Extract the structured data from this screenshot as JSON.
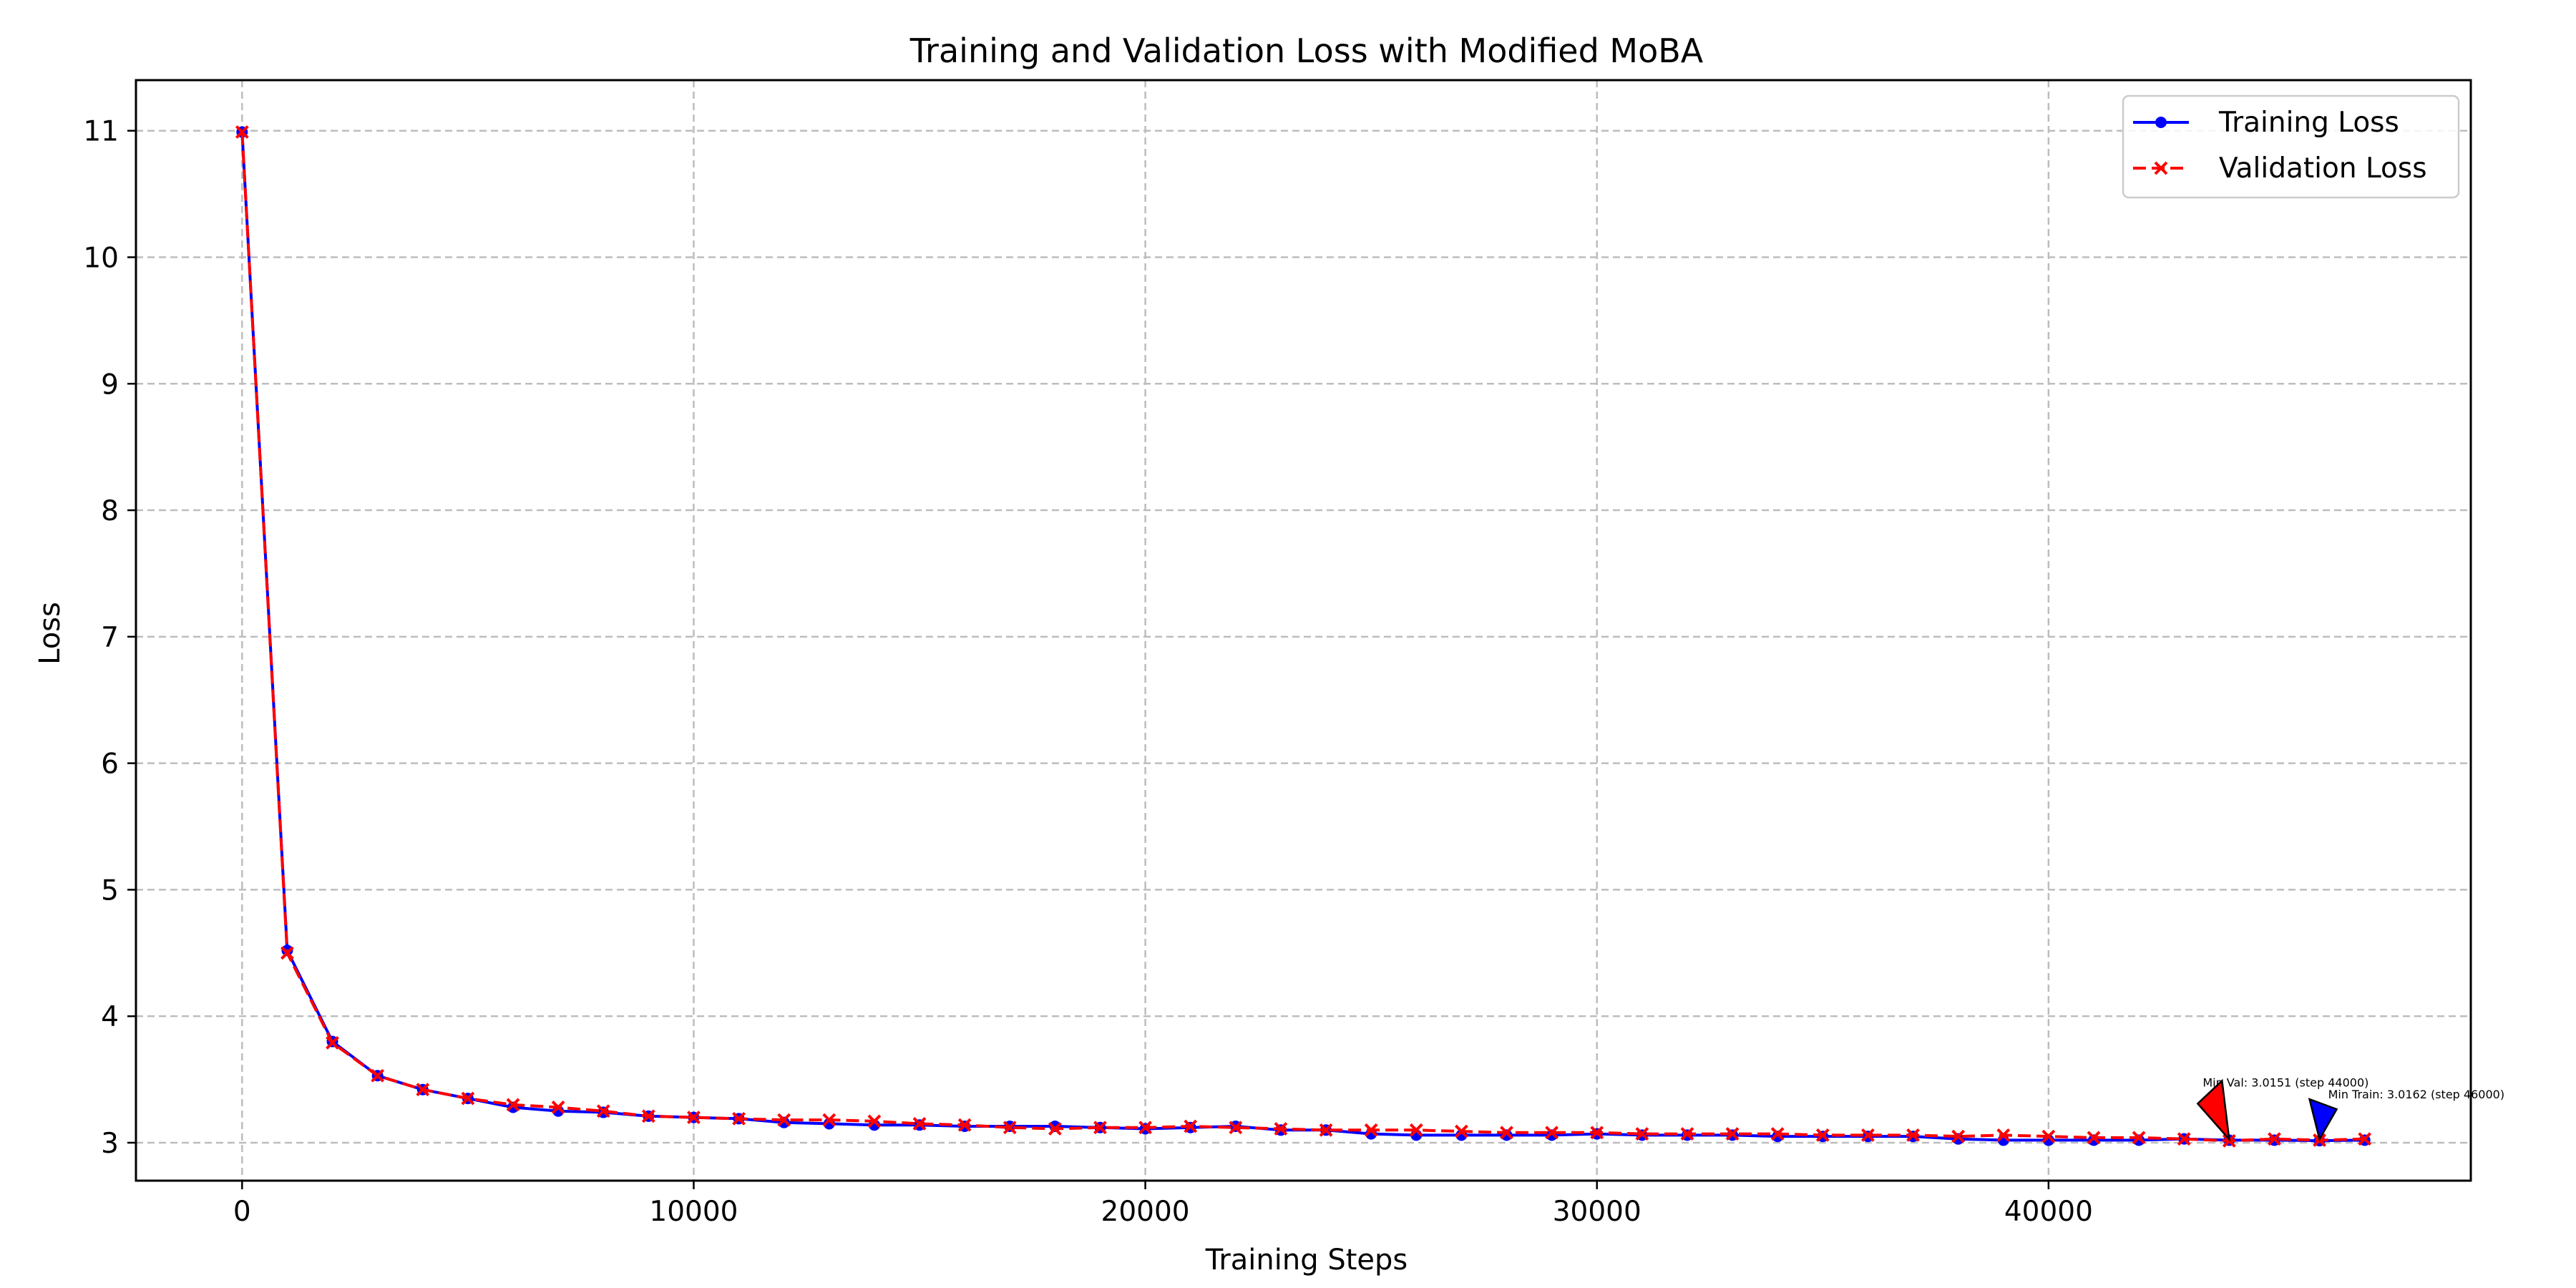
{
  "chart_data": {
    "type": "line",
    "title": "Training and Validation Loss with Modified MoBA",
    "xlabel": "Training Steps",
    "ylabel": "Loss",
    "xlim": [
      -2350,
      49350
    ],
    "ylim": [
      2.7,
      11.4
    ],
    "x_ticks": [
      0,
      10000,
      20000,
      30000,
      40000
    ],
    "y_ticks": [
      3,
      4,
      5,
      6,
      7,
      8,
      9,
      10,
      11
    ],
    "grid": true,
    "legend_position": "top-right",
    "x": [
      0,
      1000,
      2000,
      3000,
      4000,
      5000,
      6000,
      7000,
      8000,
      9000,
      10000,
      11000,
      12000,
      13000,
      14000,
      15000,
      16000,
      17000,
      18000,
      19000,
      20000,
      21000,
      22000,
      23000,
      24000,
      25000,
      26000,
      27000,
      28000,
      29000,
      30000,
      31000,
      32000,
      33000,
      34000,
      35000,
      36000,
      37000,
      38000,
      39000,
      40000,
      41000,
      42000,
      43000,
      44000,
      45000,
      46000,
      47000
    ],
    "series": [
      {
        "name": "Training Loss",
        "color": "#0000ff",
        "linestyle": "solid",
        "marker": "circle",
        "values": [
          10.99,
          4.52,
          3.8,
          3.53,
          3.42,
          3.35,
          3.28,
          3.25,
          3.24,
          3.21,
          3.2,
          3.19,
          3.16,
          3.15,
          3.14,
          3.14,
          3.13,
          3.13,
          3.13,
          3.12,
          3.11,
          3.12,
          3.13,
          3.1,
          3.1,
          3.07,
          3.06,
          3.06,
          3.06,
          3.06,
          3.07,
          3.06,
          3.06,
          3.06,
          3.05,
          3.05,
          3.05,
          3.05,
          3.03,
          3.02,
          3.02,
          3.02,
          3.02,
          3.03,
          3.02,
          3.02,
          3.0162,
          3.02
        ]
      },
      {
        "name": "Validation Loss",
        "color": "#ff0000",
        "linestyle": "dashed",
        "marker": "x",
        "values": [
          10.99,
          4.5,
          3.79,
          3.53,
          3.42,
          3.35,
          3.3,
          3.28,
          3.25,
          3.21,
          3.2,
          3.19,
          3.18,
          3.18,
          3.17,
          3.15,
          3.14,
          3.12,
          3.11,
          3.12,
          3.12,
          3.13,
          3.12,
          3.11,
          3.1,
          3.1,
          3.1,
          3.09,
          3.08,
          3.08,
          3.08,
          3.07,
          3.07,
          3.07,
          3.07,
          3.06,
          3.06,
          3.06,
          3.05,
          3.06,
          3.05,
          3.04,
          3.04,
          3.03,
          3.0151,
          3.03,
          3.02,
          3.03
        ]
      }
    ],
    "annotations": [
      {
        "text": "Min Val: 3.0151 (step 44000)",
        "x": 44000,
        "y": 3.0151,
        "color": "#ff0000"
      },
      {
        "text": "Min Train: 3.0162 (step 46000)",
        "x": 46000,
        "y": 3.0162,
        "color": "#0000ff"
      }
    ]
  }
}
